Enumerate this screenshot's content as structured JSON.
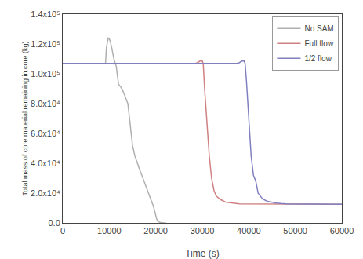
{
  "chart_data": {
    "type": "line",
    "xlabel": "Time (s)",
    "ylabel": "Total mass of core material remaining in core (kg)",
    "xlim": [
      0,
      60000
    ],
    "ylim": [
      0,
      140000.0
    ],
    "xticks": [
      0,
      10000,
      20000,
      30000,
      40000,
      50000,
      60000
    ],
    "yticks": [
      {
        "value": 0,
        "label": "0.0"
      },
      {
        "value": 20000.0,
        "label": "2.0x10⁴"
      },
      {
        "value": 40000.0,
        "label": "4.0x10⁴"
      },
      {
        "value": 60000.0,
        "label": "6.0x10⁴"
      },
      {
        "value": 80000.0,
        "label": "8.0x10⁴"
      },
      {
        "value": 100000.0,
        "label": "1.0x10⁵"
      },
      {
        "value": 120000.0,
        "label": "1.2x10⁵"
      },
      {
        "value": 140000.0,
        "label": "1.4x10⁵"
      }
    ],
    "grid": false,
    "legend": "upper right",
    "series": [
      {
        "name": "No SAM",
        "color": "#b0b0b0",
        "x": [
          0,
          7500,
          9200,
          9400,
          9600,
          9700,
          9800,
          10000,
          10200,
          10500,
          11000,
          11500,
          12000,
          12500,
          13000,
          14000,
          14500,
          15000,
          15500,
          16000,
          16500,
          17000,
          17500,
          18000,
          18500,
          19000,
          19500,
          20000,
          20200,
          20500,
          21000,
          21500,
          22000,
          22200
        ],
        "values": [
          107000.0,
          107000.0,
          107000.0,
          118000.0,
          122000.0,
          123500.0,
          124000.0,
          123500.0,
          122000.0,
          118000.0,
          110000.0,
          105000.0,
          93000.0,
          91000.0,
          88000.0,
          80000.0,
          65000.0,
          52000.0,
          45000.0,
          40000.0,
          36000.0,
          32000.0,
          28000.0,
          24000.0,
          20000.0,
          15000.0,
          11000.0,
          5000.0,
          2500.0,
          1000.0,
          300.0,
          100.0,
          10.0,
          0.0
        ]
      },
      {
        "name": "Full flow",
        "color": "#d08080",
        "x": [
          0,
          28500,
          29000,
          29500,
          30000,
          30200,
          30500,
          31000,
          31500,
          32000,
          32500,
          33000,
          34000,
          35000,
          36000,
          37000,
          38000,
          60000
        ],
        "values": [
          107000.0,
          107000.0,
          107500.0,
          108500.0,
          108500.0,
          107000.0,
          90000.0,
          65000.0,
          45000.0,
          30000.0,
          22000.0,
          18000.0,
          15500.0,
          14000.0,
          13500.0,
          13000.0,
          12800.0,
          12500.0
        ]
      },
      {
        "name": "1/2 flow",
        "color": "#8080c0",
        "x": [
          0,
          37500,
          38000,
          38500,
          39000,
          39200,
          39500,
          40000,
          40500,
          41000,
          41500,
          42000,
          43000,
          44000,
          45000,
          46000,
          47000,
          48000,
          60000
        ],
        "values": [
          107000.0,
          107000.0,
          107500.0,
          108500.0,
          108500.0,
          107000.0,
          95000.0,
          68000.0,
          45000.0,
          32000.0,
          28000.0,
          20000.0,
          16000.0,
          14500.0,
          13800.0,
          13300.0,
          13000.0,
          12800.0,
          12500.0
        ]
      }
    ]
  }
}
